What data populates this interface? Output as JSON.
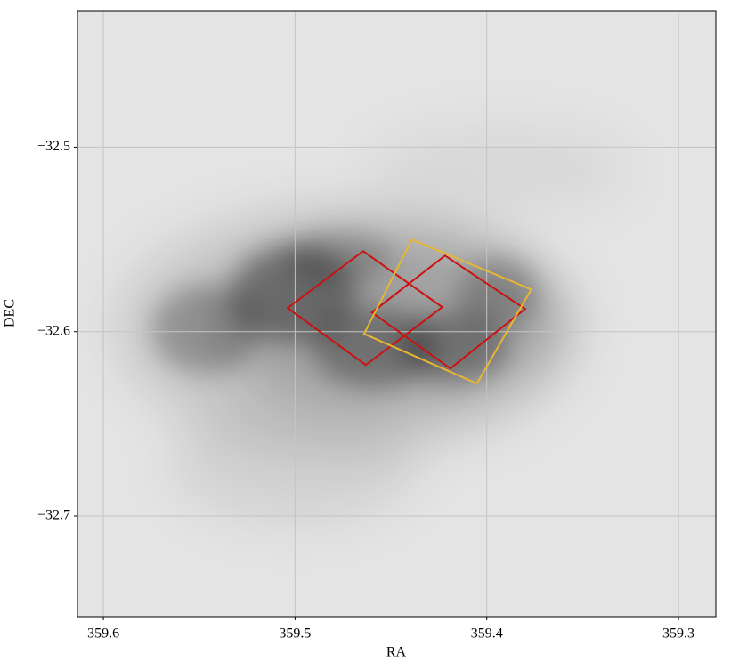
{
  "chart_data": {
    "type": "polygon",
    "xlabel": "RA",
    "ylabel": "DEC",
    "xlim": [
      359.6135,
      359.2805
    ],
    "ylim": [
      -32.7545,
      -32.426
    ],
    "xticks": [
      359.6,
      359.5,
      359.4,
      359.3
    ],
    "yticks": [
      {
        "value": -32.5,
        "label": "−32.5"
      },
      {
        "value": -32.6,
        "label": "−32.6"
      },
      {
        "value": -32.7,
        "label": "−32.7"
      }
    ],
    "grid": true,
    "series": [
      {
        "color": "#cc1111",
        "x": [
          359.4645,
          359.4232,
          359.4631,
          359.5039
        ],
        "y": [
          -32.5564,
          -32.5867,
          -32.6181,
          -32.5872
        ]
      },
      {
        "color": "#cc1111",
        "x": [
          359.4218,
          359.38,
          359.419,
          359.4599
        ],
        "y": [
          -32.5588,
          -32.5877,
          -32.62,
          -32.5896
        ]
      },
      {
        "color": "#e8b631",
        "x": [
          359.439,
          359.3768,
          359.4051,
          359.464
        ],
        "y": [
          -32.5501,
          -32.5771,
          -32.6282,
          -32.6012
        ]
      }
    ]
  }
}
